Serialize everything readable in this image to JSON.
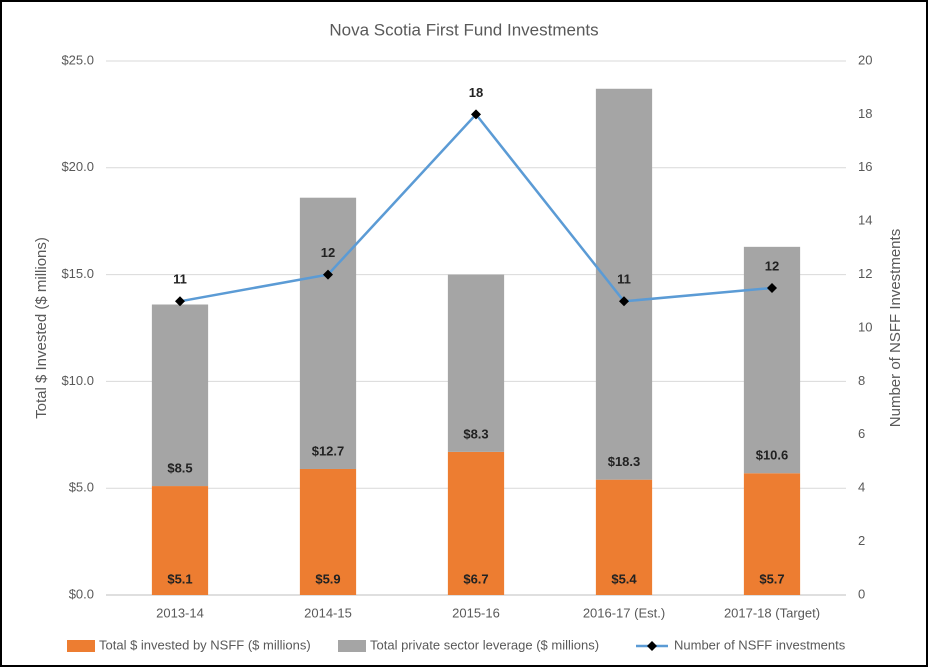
{
  "chart_data": {
    "type": "bar",
    "stacked": true,
    "title": "Nova Scotia First Fund Investments",
    "ylabel": "Total $ Invested ($ millions)",
    "y2label": "Number of NSFF Investments",
    "categories": [
      "2013-14",
      "2014-15",
      "2015-16",
      "2016-17 (Est.)",
      "2017-18 (Target)"
    ],
    "series": [
      {
        "name": "Total $ invested by NSFF ($ millions)",
        "color": "#ed7d31",
        "values": [
          5.1,
          5.9,
          6.7,
          5.4,
          5.7
        ],
        "value_labels": [
          "$5.1",
          "$5.9",
          "$6.7",
          "$5.4",
          "$5.7"
        ]
      },
      {
        "name": "Total private sector leverage ($ millions)",
        "color": "#a5a5a5",
        "values": [
          8.5,
          12.7,
          8.3,
          18.3,
          10.6
        ],
        "value_labels": [
          "$8.5",
          "$12.7",
          "$8.3",
          "$18.3",
          "$10.6"
        ]
      },
      {
        "name": "Number of NSFF investments",
        "type": "line",
        "axis": "y2",
        "color": "#5b9bd5",
        "marker_color": "#000000",
        "values": [
          11,
          12,
          18,
          11,
          11.5
        ],
        "value_labels": [
          "11",
          "12",
          "18",
          "11",
          "12"
        ]
      }
    ],
    "ylim": [
      0,
      25
    ],
    "yticks": [
      {
        "value": 0,
        "label": "$0.0"
      },
      {
        "value": 5,
        "label": "$5.0"
      },
      {
        "value": 10,
        "label": "$10.0"
      },
      {
        "value": 15,
        "label": "$15.0"
      },
      {
        "value": 20,
        "label": "$20.0"
      },
      {
        "value": 25,
        "label": "$25.0"
      }
    ],
    "y2lim": [
      0,
      20
    ],
    "y2ticks": [
      0,
      2,
      4,
      6,
      8,
      10,
      12,
      14,
      16,
      18,
      20
    ],
    "grid": true,
    "legend": "bottom"
  }
}
